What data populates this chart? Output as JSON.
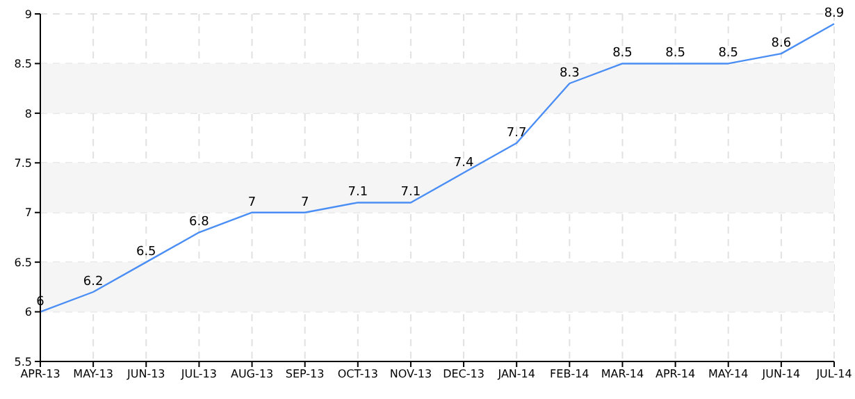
{
  "chart_data": {
    "type": "line",
    "categories": [
      "APR-13",
      "MAY-13",
      "JUN-13",
      "JUL-13",
      "AUG-13",
      "SEP-13",
      "OCT-13",
      "NOV-13",
      "DEC-13",
      "JAN-14",
      "FEB-14",
      "MAR-14",
      "APR-14",
      "MAY-14",
      "JUN-14",
      "JUL-14"
    ],
    "series": [
      {
        "color": "#4a8ef5",
        "values": [
          6,
          6.2,
          6.5,
          6.8,
          7,
          7,
          7.1,
          7.1,
          7.4,
          7.7,
          8.3,
          8.5,
          8.5,
          8.5,
          8.6,
          8.9
        ]
      }
    ],
    "ylim": [
      5.5,
      9
    ],
    "yticks": [
      5.5,
      6,
      6.5,
      7,
      7.5,
      8,
      8.5,
      9
    ],
    "grid": true,
    "marker": "none",
    "line_style": "solid",
    "data_labels": true,
    "bands": [
      {
        "axis": "y",
        "from": 6,
        "to": 6.5,
        "color": "#f5f5f5"
      },
      {
        "axis": "y",
        "from": 7,
        "to": 7.5,
        "color": "#f5f5f5"
      },
      {
        "axis": "y",
        "from": 8,
        "to": 8.5,
        "color": "#f5f5f5"
      }
    ]
  }
}
